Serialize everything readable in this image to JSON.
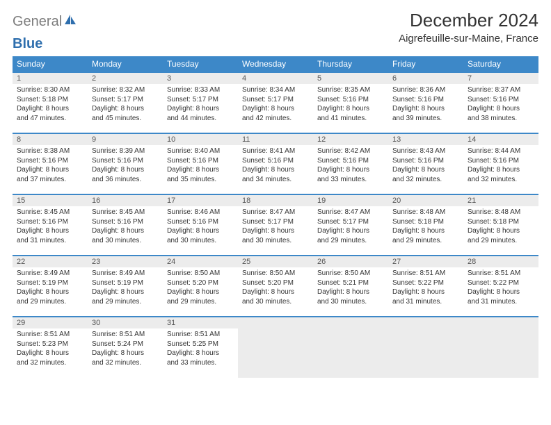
{
  "logo": {
    "word1": "General",
    "word2": "Blue",
    "color_gray": "#7c7c7c",
    "color_blue": "#2f6fae"
  },
  "title": "December 2024",
  "location": "Aigrefeuille-sur-Maine, France",
  "header_bg": "#3d88c8",
  "daynum_bg": "#ececec",
  "border_color": "#3d88c8",
  "text_color": "#333333",
  "font_size_cell": 10,
  "weekdays": [
    "Sunday",
    "Monday",
    "Tuesday",
    "Wednesday",
    "Thursday",
    "Friday",
    "Saturday"
  ],
  "weeks": [
    [
      {
        "n": "1",
        "sr": "Sunrise: 8:30 AM",
        "ss": "Sunset: 5:18 PM",
        "d1": "Daylight: 8 hours",
        "d2": "and 47 minutes."
      },
      {
        "n": "2",
        "sr": "Sunrise: 8:32 AM",
        "ss": "Sunset: 5:17 PM",
        "d1": "Daylight: 8 hours",
        "d2": "and 45 minutes."
      },
      {
        "n": "3",
        "sr": "Sunrise: 8:33 AM",
        "ss": "Sunset: 5:17 PM",
        "d1": "Daylight: 8 hours",
        "d2": "and 44 minutes."
      },
      {
        "n": "4",
        "sr": "Sunrise: 8:34 AM",
        "ss": "Sunset: 5:17 PM",
        "d1": "Daylight: 8 hours",
        "d2": "and 42 minutes."
      },
      {
        "n": "5",
        "sr": "Sunrise: 8:35 AM",
        "ss": "Sunset: 5:16 PM",
        "d1": "Daylight: 8 hours",
        "d2": "and 41 minutes."
      },
      {
        "n": "6",
        "sr": "Sunrise: 8:36 AM",
        "ss": "Sunset: 5:16 PM",
        "d1": "Daylight: 8 hours",
        "d2": "and 39 minutes."
      },
      {
        "n": "7",
        "sr": "Sunrise: 8:37 AM",
        "ss": "Sunset: 5:16 PM",
        "d1": "Daylight: 8 hours",
        "d2": "and 38 minutes."
      }
    ],
    [
      {
        "n": "8",
        "sr": "Sunrise: 8:38 AM",
        "ss": "Sunset: 5:16 PM",
        "d1": "Daylight: 8 hours",
        "d2": "and 37 minutes."
      },
      {
        "n": "9",
        "sr": "Sunrise: 8:39 AM",
        "ss": "Sunset: 5:16 PM",
        "d1": "Daylight: 8 hours",
        "d2": "and 36 minutes."
      },
      {
        "n": "10",
        "sr": "Sunrise: 8:40 AM",
        "ss": "Sunset: 5:16 PM",
        "d1": "Daylight: 8 hours",
        "d2": "and 35 minutes."
      },
      {
        "n": "11",
        "sr": "Sunrise: 8:41 AM",
        "ss": "Sunset: 5:16 PM",
        "d1": "Daylight: 8 hours",
        "d2": "and 34 minutes."
      },
      {
        "n": "12",
        "sr": "Sunrise: 8:42 AM",
        "ss": "Sunset: 5:16 PM",
        "d1": "Daylight: 8 hours",
        "d2": "and 33 minutes."
      },
      {
        "n": "13",
        "sr": "Sunrise: 8:43 AM",
        "ss": "Sunset: 5:16 PM",
        "d1": "Daylight: 8 hours",
        "d2": "and 32 minutes."
      },
      {
        "n": "14",
        "sr": "Sunrise: 8:44 AM",
        "ss": "Sunset: 5:16 PM",
        "d1": "Daylight: 8 hours",
        "d2": "and 32 minutes."
      }
    ],
    [
      {
        "n": "15",
        "sr": "Sunrise: 8:45 AM",
        "ss": "Sunset: 5:16 PM",
        "d1": "Daylight: 8 hours",
        "d2": "and 31 minutes."
      },
      {
        "n": "16",
        "sr": "Sunrise: 8:45 AM",
        "ss": "Sunset: 5:16 PM",
        "d1": "Daylight: 8 hours",
        "d2": "and 30 minutes."
      },
      {
        "n": "17",
        "sr": "Sunrise: 8:46 AM",
        "ss": "Sunset: 5:16 PM",
        "d1": "Daylight: 8 hours",
        "d2": "and 30 minutes."
      },
      {
        "n": "18",
        "sr": "Sunrise: 8:47 AM",
        "ss": "Sunset: 5:17 PM",
        "d1": "Daylight: 8 hours",
        "d2": "and 30 minutes."
      },
      {
        "n": "19",
        "sr": "Sunrise: 8:47 AM",
        "ss": "Sunset: 5:17 PM",
        "d1": "Daylight: 8 hours",
        "d2": "and 29 minutes."
      },
      {
        "n": "20",
        "sr": "Sunrise: 8:48 AM",
        "ss": "Sunset: 5:18 PM",
        "d1": "Daylight: 8 hours",
        "d2": "and 29 minutes."
      },
      {
        "n": "21",
        "sr": "Sunrise: 8:48 AM",
        "ss": "Sunset: 5:18 PM",
        "d1": "Daylight: 8 hours",
        "d2": "and 29 minutes."
      }
    ],
    [
      {
        "n": "22",
        "sr": "Sunrise: 8:49 AM",
        "ss": "Sunset: 5:19 PM",
        "d1": "Daylight: 8 hours",
        "d2": "and 29 minutes."
      },
      {
        "n": "23",
        "sr": "Sunrise: 8:49 AM",
        "ss": "Sunset: 5:19 PM",
        "d1": "Daylight: 8 hours",
        "d2": "and 29 minutes."
      },
      {
        "n": "24",
        "sr": "Sunrise: 8:50 AM",
        "ss": "Sunset: 5:20 PM",
        "d1": "Daylight: 8 hours",
        "d2": "and 29 minutes."
      },
      {
        "n": "25",
        "sr": "Sunrise: 8:50 AM",
        "ss": "Sunset: 5:20 PM",
        "d1": "Daylight: 8 hours",
        "d2": "and 30 minutes."
      },
      {
        "n": "26",
        "sr": "Sunrise: 8:50 AM",
        "ss": "Sunset: 5:21 PM",
        "d1": "Daylight: 8 hours",
        "d2": "and 30 minutes."
      },
      {
        "n": "27",
        "sr": "Sunrise: 8:51 AM",
        "ss": "Sunset: 5:22 PM",
        "d1": "Daylight: 8 hours",
        "d2": "and 31 minutes."
      },
      {
        "n": "28",
        "sr": "Sunrise: 8:51 AM",
        "ss": "Sunset: 5:22 PM",
        "d1": "Daylight: 8 hours",
        "d2": "and 31 minutes."
      }
    ],
    [
      {
        "n": "29",
        "sr": "Sunrise: 8:51 AM",
        "ss": "Sunset: 5:23 PM",
        "d1": "Daylight: 8 hours",
        "d2": "and 32 minutes."
      },
      {
        "n": "30",
        "sr": "Sunrise: 8:51 AM",
        "ss": "Sunset: 5:24 PM",
        "d1": "Daylight: 8 hours",
        "d2": "and 32 minutes."
      },
      {
        "n": "31",
        "sr": "Sunrise: 8:51 AM",
        "ss": "Sunset: 5:25 PM",
        "d1": "Daylight: 8 hours",
        "d2": "and 33 minutes."
      },
      null,
      null,
      null,
      null
    ]
  ]
}
